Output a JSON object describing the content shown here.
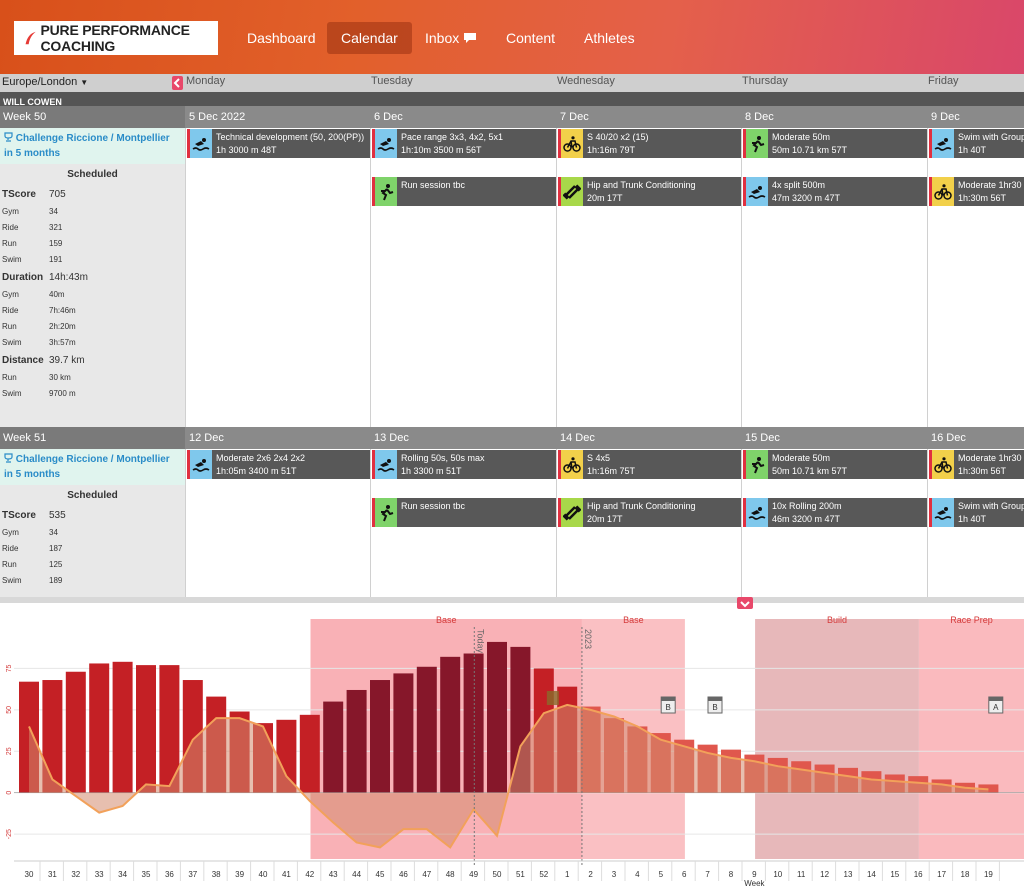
{
  "app": {
    "logo_text": "PURE PERFORMANCE COACHING",
    "nav": [
      {
        "label": "Dashboard",
        "active": false
      },
      {
        "label": "Calendar",
        "active": true
      },
      {
        "label": "Inbox",
        "active": false
      },
      {
        "label": "Content",
        "active": false
      },
      {
        "label": "Athletes",
        "active": false
      }
    ]
  },
  "calendar": {
    "timezone": "Europe/London",
    "athlete": "WILL COWEN",
    "day_headers": [
      "Monday",
      "Tuesday",
      "Wednesday",
      "Thursday",
      "Friday"
    ],
    "weeks": [
      {
        "label": "Week 50",
        "dates": [
          "5 Dec 2022",
          "6 Dec",
          "7 Dec",
          "8 Dec",
          "9 Dec"
        ],
        "event": "Challenge Riccione / Montpellier in 5 months",
        "summary": {
          "title": "Scheduled",
          "rows": [
            {
              "label": "TScore",
              "value": "705",
              "big": true
            },
            {
              "label": "Gym",
              "value": "34"
            },
            {
              "label": "Ride",
              "value": "321"
            },
            {
              "label": "Run",
              "value": "159"
            },
            {
              "label": "Swim",
              "value": "191"
            },
            {
              "label": "Duration",
              "value": "14h:43m",
              "big": true
            },
            {
              "label": "Gym",
              "value": "40m"
            },
            {
              "label": "Ride",
              "value": "7h:46m"
            },
            {
              "label": "Run",
              "value": "2h:20m"
            },
            {
              "label": "Swim",
              "value": "3h:57m"
            },
            {
              "label": "Distance",
              "value": "39.7 km",
              "big": true
            },
            {
              "label": "Run",
              "value": "30 km"
            },
            {
              "label": "Swim",
              "value": "9700 m"
            }
          ]
        },
        "days": [
          [
            {
              "sport": "swim",
              "title": "Technical development (50, 200(PP))",
              "detail": "1h 3000 m 48T"
            }
          ],
          [
            {
              "sport": "swim",
              "title": "Pace range 3x3, 4x2, 5x1",
              "detail": "1h:10m 3500 m 56T"
            },
            {
              "sport": "run",
              "title": "Run session tbc",
              "detail": ""
            }
          ],
          [
            {
              "sport": "bike",
              "title": "S 40/20 x2 (15)",
              "detail": "1h:16m 79T"
            },
            {
              "sport": "gym",
              "title": "Hip and Trunk Conditioning",
              "detail": "20m 17T"
            }
          ],
          [
            {
              "sport": "run",
              "title": "Moderate 50m",
              "detail": "50m 10.71 km 57T"
            },
            {
              "sport": "swim",
              "title": "4x split 500m",
              "detail": "47m 3200 m 47T"
            }
          ],
          [
            {
              "sport": "swim",
              "title": "Swim with Group",
              "detail": "1h 40T"
            },
            {
              "sport": "bike",
              "title": "Moderate 1hr30",
              "detail": "1h:30m 56T"
            }
          ]
        ]
      },
      {
        "label": "Week 51",
        "dates": [
          "12 Dec",
          "13 Dec",
          "14 Dec",
          "15 Dec",
          "16 Dec"
        ],
        "event": "Challenge Riccione / Montpellier in 5 months",
        "summary": {
          "title": "Scheduled",
          "rows": [
            {
              "label": "TScore",
              "value": "535",
              "big": true
            },
            {
              "label": "Gym",
              "value": "34"
            },
            {
              "label": "Ride",
              "value": "187"
            },
            {
              "label": "Run",
              "value": "125"
            },
            {
              "label": "Swim",
              "value": "189"
            }
          ]
        },
        "days": [
          [
            {
              "sport": "swim",
              "title": "Moderate 2x6 2x4 2x2",
              "detail": "1h:05m 3400 m 51T"
            }
          ],
          [
            {
              "sport": "swim",
              "title": "Rolling 50s, 50s max",
              "detail": "1h 3300 m 51T"
            },
            {
              "sport": "run",
              "title": "Run session tbc",
              "detail": ""
            }
          ],
          [
            {
              "sport": "bike",
              "title": "S 4x5",
              "detail": "1h:16m 75T"
            },
            {
              "sport": "gym",
              "title": "Hip and Trunk Conditioning",
              "detail": "20m 17T"
            }
          ],
          [
            {
              "sport": "run",
              "title": "Moderate 50m",
              "detail": "50m 10.71 km 57T"
            },
            {
              "sport": "swim",
              "title": "10x Rolling 200m",
              "detail": "46m 3200 m 47T"
            }
          ],
          [
            {
              "sport": "bike",
              "title": "Moderate 1hr30",
              "detail": "1h:30m 56T"
            },
            {
              "sport": "swim",
              "title": "Swim with Group",
              "detail": "1h 40T"
            }
          ]
        ]
      }
    ]
  },
  "sport_colors": {
    "swim": "#7fc8ec",
    "run": "#7fd36a",
    "bike": "#f2d04a",
    "gym": "#a8d84a"
  },
  "chart_data": {
    "type": "bar",
    "xlabel": "Week",
    "ylabel": "",
    "ylim": [
      -40,
      100
    ],
    "yticks": [
      -25,
      0,
      25,
      50,
      75
    ],
    "categories": [
      "30",
      "31",
      "32",
      "33",
      "34",
      "35",
      "36",
      "37",
      "38",
      "39",
      "40",
      "41",
      "42",
      "43",
      "44",
      "45",
      "46",
      "47",
      "48",
      "49",
      "50",
      "51",
      "52",
      "1",
      "2",
      "3",
      "4",
      "5",
      "6",
      "7",
      "8",
      "9",
      "10",
      "11",
      "12",
      "13",
      "14",
      "15",
      "16",
      "17",
      "18",
      "19"
    ],
    "series": [
      {
        "name": "",
        "kind": "bars",
        "values": [
          67,
          68,
          73,
          78,
          79,
          77,
          77,
          68,
          58,
          49,
          42,
          44,
          47,
          55,
          62,
          68,
          72,
          76,
          82,
          84,
          91,
          88,
          75,
          64,
          52,
          45,
          40,
          36,
          32,
          29,
          26,
          23,
          21,
          19,
          17,
          15,
          13,
          11,
          10,
          8,
          6,
          5
        ],
        "shade": [
          "medium",
          "medium",
          "medium",
          "medium",
          "medium",
          "medium",
          "medium",
          "medium",
          "medium",
          "medium",
          "medium",
          "medium",
          "medium",
          "dark",
          "dark",
          "dark",
          "dark",
          "dark",
          "dark",
          "dark",
          "dark",
          "dark",
          "medium",
          "medium",
          "light",
          "light",
          "light",
          "light",
          "light",
          "light",
          "light",
          "light",
          "light",
          "light",
          "light",
          "light",
          "light",
          "light",
          "light",
          "light",
          "light",
          "light"
        ]
      },
      {
        "name": "",
        "kind": "line-area",
        "values": [
          40,
          8,
          -2,
          -12,
          -8,
          5,
          4,
          32,
          45,
          45,
          40,
          10,
          -5,
          -18,
          -30,
          -33,
          -22,
          -22,
          -33,
          -10,
          -26,
          28,
          48,
          53,
          50,
          46,
          40,
          32,
          28,
          24,
          21,
          19,
          16,
          14,
          12,
          10,
          8,
          7,
          6,
          5,
          3,
          2
        ]
      }
    ],
    "phases": [
      {
        "label": "Base",
        "from_index": 12.5,
        "to_index": 24.1,
        "color": "#f8a9ae"
      },
      {
        "label": "Base",
        "from_index": 24.1,
        "to_index": 28.5,
        "color": "#f9b9bd"
      },
      {
        "label": "Build",
        "from_index": 31.5,
        "to_index": 38.5,
        "color": "#e4b0b3"
      },
      {
        "label": "Race Prep",
        "from_index": 38.5,
        "to_index": 43,
        "color": "#f9b3b7"
      }
    ],
    "markers": [
      {
        "label": "Today",
        "index": 19.5
      },
      {
        "label": "2023",
        "index": 24.1
      }
    ],
    "race_flags": [
      {
        "label": "B",
        "index": 28
      },
      {
        "label": "B",
        "index": 30
      },
      {
        "label": "A",
        "index": 42
      }
    ],
    "grid": true
  }
}
